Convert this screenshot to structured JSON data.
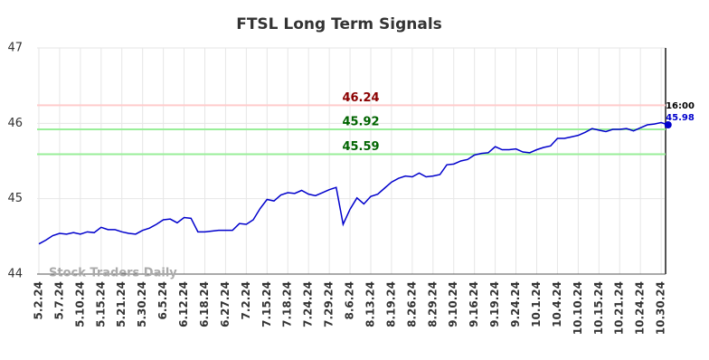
{
  "chart_data": {
    "type": "line",
    "title": "FTSL Long Term Signals",
    "categories": [
      "5.2.24",
      null,
      null,
      "5.7.24",
      null,
      null,
      "5.10.24",
      null,
      null,
      "5.15.24",
      null,
      null,
      "5.21.24",
      null,
      null,
      "5.30.24",
      null,
      null,
      "6.5.24",
      null,
      null,
      "6.12.24",
      null,
      null,
      "6.18.24",
      null,
      null,
      "6.27.24",
      null,
      null,
      "7.2.24",
      null,
      null,
      "7.15.24",
      null,
      null,
      "7.18.24",
      null,
      null,
      "7.24.24",
      null,
      null,
      "7.29.24",
      null,
      null,
      "8.6.24",
      null,
      null,
      "8.13.24",
      null,
      null,
      "8.19.24",
      null,
      null,
      "8.26.24",
      null,
      null,
      "8.29.24",
      null,
      null,
      "9.10.24",
      null,
      null,
      "9.16.24",
      null,
      null,
      "9.19.24",
      null,
      null,
      "9.24.24",
      null,
      null,
      "10.1.24",
      null,
      null,
      "10.4.24",
      null,
      null,
      "10.10.24",
      null,
      null,
      "10.15.24",
      null,
      null,
      "10.21.24",
      null,
      null,
      "10.24.24",
      null,
      null,
      "10.30.24",
      null
    ],
    "series": [
      {
        "name": "FTSL",
        "color": "#0000cc",
        "values": [
          44.4,
          44.45,
          44.51,
          44.54,
          44.53,
          44.55,
          44.53,
          44.56,
          44.55,
          44.62,
          44.59,
          44.59,
          44.56,
          44.54,
          44.53,
          44.58,
          44.61,
          44.66,
          44.72,
          44.73,
          44.68,
          44.75,
          44.74,
          44.56,
          44.56,
          44.57,
          44.58,
          44.58,
          44.58,
          44.67,
          44.66,
          44.72,
          44.87,
          44.99,
          44.97,
          45.05,
          45.08,
          45.07,
          45.11,
          45.06,
          45.04,
          45.08,
          45.12,
          45.15,
          44.66,
          44.86,
          45.01,
          44.93,
          45.03,
          45.06,
          45.14,
          45.22,
          45.27,
          45.3,
          45.29,
          45.34,
          45.29,
          45.3,
          45.32,
          45.45,
          45.46,
          45.5,
          45.52,
          45.58,
          45.6,
          45.61,
          45.69,
          45.65,
          45.65,
          45.66,
          45.62,
          45.61,
          45.65,
          45.68,
          45.7,
          45.8,
          45.8,
          45.82,
          45.84,
          45.88,
          45.93,
          45.91,
          45.89,
          45.92,
          45.92,
          45.93,
          45.9,
          45.94,
          45.98,
          45.99,
          46.01,
          45.98
        ]
      }
    ],
    "ylim": [
      44,
      47
    ],
    "yticks": [
      44,
      45,
      46,
      47
    ],
    "grid": true,
    "reference_lines": [
      {
        "value": 46.24,
        "color": "#ffcccc",
        "label_color": "#8b0000"
      },
      {
        "value": 45.92,
        "color": "#99ee99",
        "label_color": "#006400"
      },
      {
        "value": 45.59,
        "color": "#99ee99",
        "label_color": "#006400"
      }
    ],
    "last_time": "16:00",
    "watermark": "Stock Traders Daily"
  }
}
